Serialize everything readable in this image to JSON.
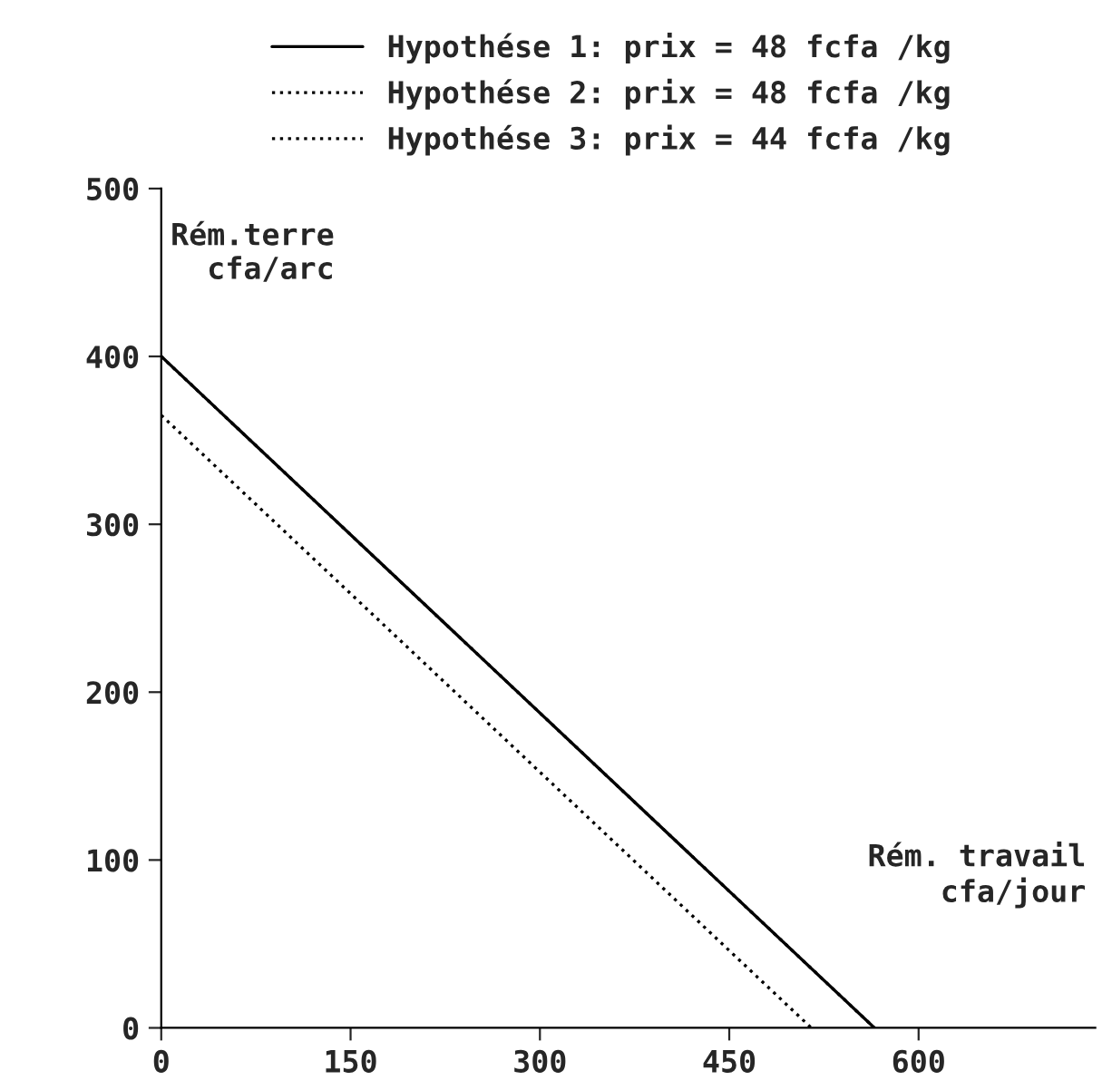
{
  "chart_data": {
    "type": "line",
    "xlabel": "Rém. travail\ncfa/jour",
    "ylabel": "Rém.terre\n  cfa/arc",
    "series": [
      {
        "name": "Hypothése 1: prix = 48 fcfa /kg",
        "color": "#000000",
        "line_style": "solid",
        "x": [
          0,
          565
        ],
        "values": [
          400,
          0
        ]
      },
      {
        "name": "Hypothése 2: prix = 48 fcfa /kg",
        "color": "#000000",
        "line_style": "dotted",
        "x": [
          0,
          565
        ],
        "values": [
          400,
          0
        ]
      },
      {
        "name": "Hypothése 3: prix = 44 fcfa /kg",
        "color": "#000000",
        "line_style": "dotted",
        "x": [
          0,
          515
        ],
        "values": [
          365,
          0
        ]
      }
    ],
    "xlim": [
      0,
      740
    ],
    "ylim": [
      0,
      500
    ],
    "xticks": [
      0,
      150,
      300,
      450,
      600
    ],
    "yticks": [
      0,
      100,
      200,
      300,
      400,
      500
    ],
    "grid": false,
    "legend": "top",
    "marker": "none"
  }
}
